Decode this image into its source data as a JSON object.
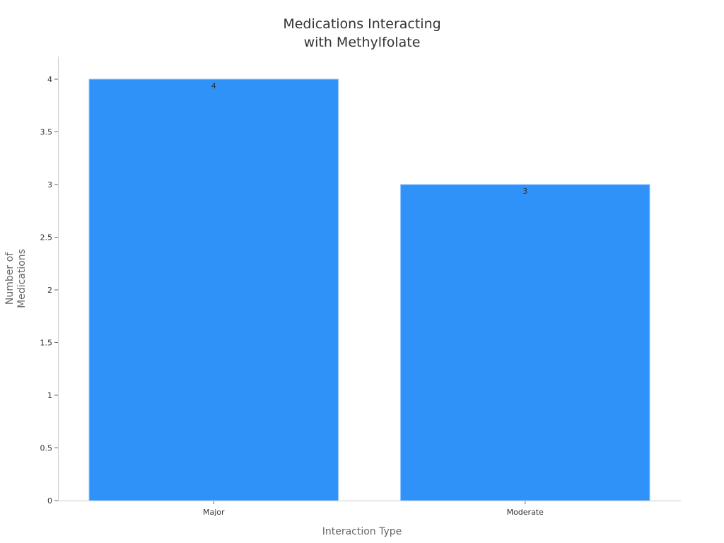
{
  "chart_data": {
    "type": "bar",
    "title_lines": [
      "Medications Interacting",
      "with Methylfolate"
    ],
    "xlabel": "Interaction Type",
    "ylabel_lines": [
      "Number of",
      "Medications"
    ],
    "categories": [
      "Major",
      "Moderate"
    ],
    "values": [
      4,
      3
    ],
    "data_labels": [
      "4",
      "3"
    ],
    "ylim": [
      0,
      4.2
    ],
    "yticks": [
      0,
      0.5,
      1,
      1.5,
      2,
      2.5,
      3,
      3.5,
      4
    ],
    "ytick_labels": [
      "0",
      "0.5",
      "1",
      "1.5",
      "2",
      "2.5",
      "3",
      "3.5",
      "4"
    ],
    "grid": false,
    "bar_color": "#2f92f8"
  }
}
